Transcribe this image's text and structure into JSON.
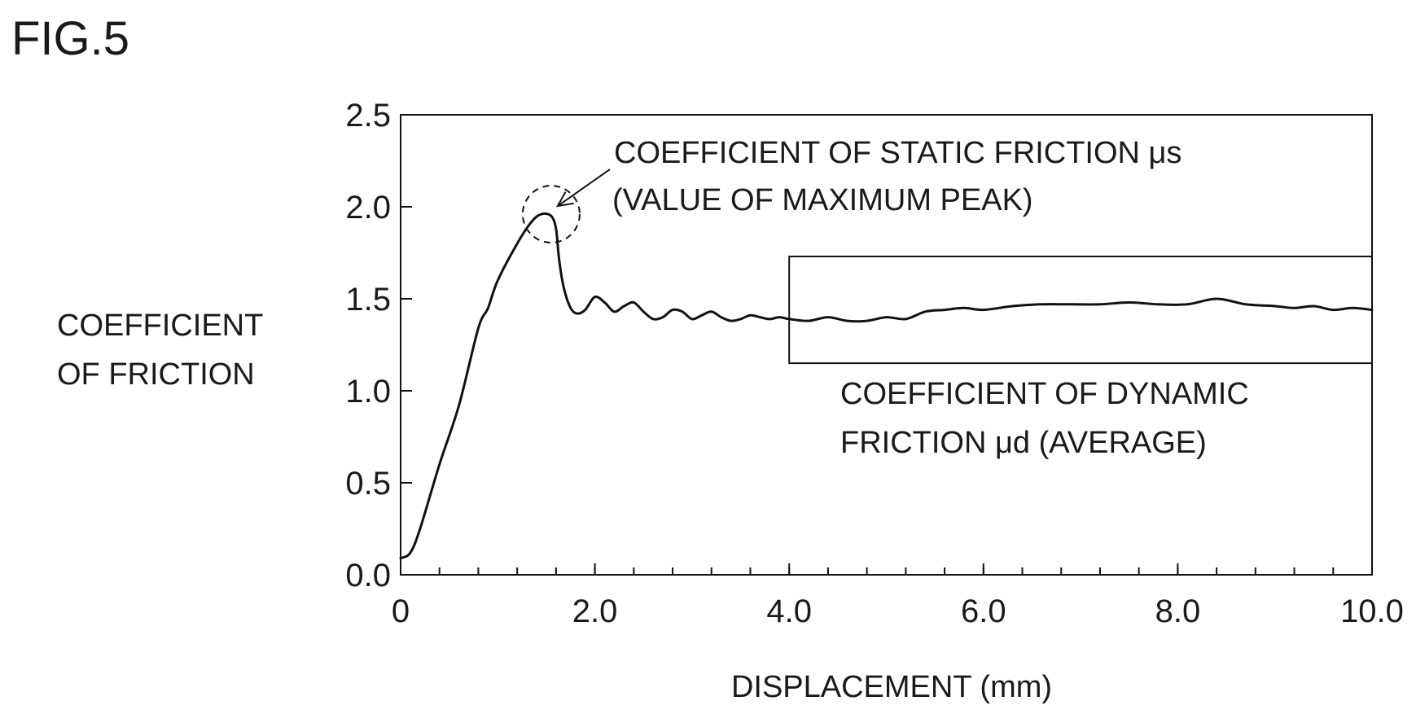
{
  "figure_title": "FIG.5",
  "chart_data": {
    "type": "line",
    "title": "",
    "xlabel": "DISPLACEMENT (mm)",
    "ylabel_lines": [
      "COEFFICIENT",
      "OF FRICTION"
    ],
    "xlim": [
      0,
      10
    ],
    "ylim": [
      0,
      2.5
    ],
    "x_ticks": [
      {
        "value": 0,
        "label": "0"
      },
      {
        "value": 2,
        "label": "2.0"
      },
      {
        "value": 4,
        "label": "4.0"
      },
      {
        "value": 6,
        "label": "6.0"
      },
      {
        "value": 8,
        "label": "8.0"
      },
      {
        "value": 10,
        "label": "10.0"
      }
    ],
    "x_minor_step": 0.4,
    "y_ticks": [
      {
        "value": 0,
        "label": "0.0"
      },
      {
        "value": 0.5,
        "label": "0.5"
      },
      {
        "value": 1.0,
        "label": "1.0"
      },
      {
        "value": 1.5,
        "label": "1.5"
      },
      {
        "value": 2.0,
        "label": "2.0"
      },
      {
        "value": 2.5,
        "label": "2.5"
      }
    ],
    "grid": false,
    "legend": "none",
    "series": [
      {
        "x": [
          0,
          0.1,
          0.2,
          0.4,
          0.6,
          0.8,
          0.9,
          1.0,
          1.2,
          1.35,
          1.45,
          1.55,
          1.6,
          1.63,
          1.68,
          1.75,
          1.82,
          1.9,
          2.0,
          2.1,
          2.2,
          2.3,
          2.4,
          2.5,
          2.6,
          2.7,
          2.8,
          2.9,
          3.0,
          3.1,
          3.2,
          3.3,
          3.4,
          3.5,
          3.6,
          3.7,
          3.8,
          3.9,
          4.0,
          4.2,
          4.4,
          4.6,
          4.8,
          5.0,
          5.2,
          5.4,
          5.6,
          5.8,
          6.0,
          6.3,
          6.6,
          6.9,
          7.2,
          7.5,
          7.8,
          8.1,
          8.4,
          8.7,
          9.0,
          9.2,
          9.4,
          9.6,
          9.8,
          10.0
        ],
        "y": [
          0.09,
          0.12,
          0.25,
          0.6,
          0.92,
          1.34,
          1.45,
          1.6,
          1.8,
          1.92,
          1.96,
          1.95,
          1.88,
          1.72,
          1.56,
          1.45,
          1.42,
          1.44,
          1.51,
          1.48,
          1.43,
          1.46,
          1.48,
          1.43,
          1.39,
          1.4,
          1.44,
          1.43,
          1.39,
          1.41,
          1.43,
          1.4,
          1.38,
          1.39,
          1.41,
          1.4,
          1.39,
          1.4,
          1.39,
          1.38,
          1.4,
          1.38,
          1.38,
          1.4,
          1.39,
          1.43,
          1.44,
          1.45,
          1.44,
          1.46,
          1.47,
          1.47,
          1.47,
          1.48,
          1.47,
          1.47,
          1.5,
          1.47,
          1.46,
          1.45,
          1.46,
          1.44,
          1.45,
          1.44
        ],
        "color": "#111111"
      }
    ],
    "annotations": {
      "static": {
        "lines": [
          "COEFFICIENT OF STATIC FRICTION μs",
          "(VALUE OF MAXIMUM PEAK)"
        ],
        "marker": "dashed-circle",
        "x": 1.55,
        "y": 1.96
      },
      "dynamic": {
        "lines": [
          "COEFFICIENT OF DYNAMIC",
          "FRICTION μd (AVERAGE)"
        ],
        "region_x": [
          4.0,
          10.0
        ],
        "region_y": [
          1.15,
          1.73
        ]
      }
    }
  }
}
